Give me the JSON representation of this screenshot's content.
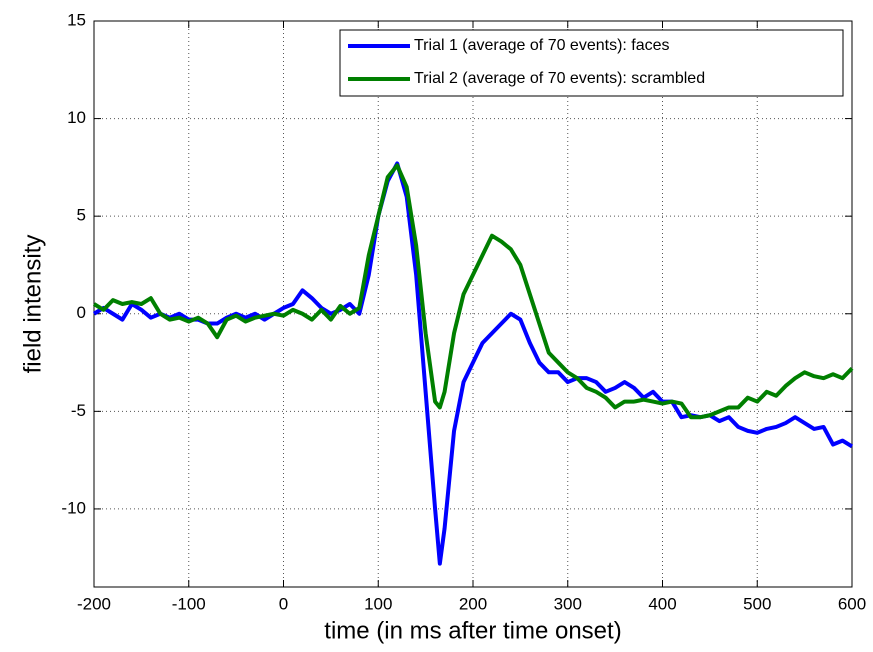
{
  "chart_data": {
    "type": "line",
    "xlabel": "time (in ms after time onset)",
    "ylabel": "field intensity",
    "x": [
      -200,
      -190,
      -180,
      -170,
      -160,
      -150,
      -140,
      -130,
      -120,
      -110,
      -100,
      -90,
      -80,
      -70,
      -60,
      -50,
      -40,
      -30,
      -20,
      -10,
      0,
      10,
      20,
      30,
      40,
      50,
      60,
      70,
      80,
      90,
      100,
      110,
      120,
      130,
      140,
      150,
      160,
      165,
      170,
      180,
      190,
      200,
      210,
      220,
      230,
      240,
      250,
      260,
      270,
      280,
      290,
      300,
      310,
      320,
      330,
      340,
      350,
      360,
      370,
      380,
      390,
      400,
      410,
      420,
      430,
      440,
      450,
      460,
      470,
      480,
      490,
      500,
      510,
      520,
      530,
      540,
      550,
      560,
      570,
      580,
      590,
      600
    ],
    "series": [
      {
        "name": "Trial 1 (average of 70 events): faces",
        "color": "#0000ff",
        "values": [
          0,
          0.3,
          0,
          -0.3,
          0.5,
          0.2,
          -0.2,
          0,
          -0.2,
          0,
          -0.3,
          -0.3,
          -0.5,
          -0.5,
          -0.2,
          0,
          -0.2,
          0,
          -0.3,
          0,
          0.3,
          0.5,
          1.2,
          0.8,
          0.3,
          0,
          0.2,
          0.5,
          0,
          2,
          5,
          6.8,
          7.7,
          6,
          2,
          -4,
          -10,
          -12.8,
          -11,
          -6,
          -3.5,
          -2.5,
          -1.5,
          -1,
          -0.5,
          0,
          -0.3,
          -1.5,
          -2.5,
          -3,
          -3,
          -3.5,
          -3.3,
          -3.3,
          -3.5,
          -4,
          -3.8,
          -3.5,
          -3.8,
          -4.3,
          -4,
          -4.5,
          -4.5,
          -5.3,
          -5.2,
          -5.3,
          -5.2,
          -5.5,
          -5.3,
          -5.8,
          -6,
          -6.1,
          -5.9,
          -5.8,
          -5.6,
          -5.3,
          -5.6,
          -5.9,
          -5.8,
          -6.7,
          -6.5,
          -6.8
        ]
      },
      {
        "name": "Trial 2 (average of 70 events): scrambled",
        "color": "#007f00",
        "values": [
          0.5,
          0.2,
          0.7,
          0.5,
          0.6,
          0.5,
          0.8,
          0,
          -0.3,
          -0.2,
          -0.4,
          -0.2,
          -0.5,
          -1.2,
          -0.3,
          -0.1,
          -0.4,
          -0.2,
          -0.1,
          0,
          -0.1,
          0.2,
          0,
          -0.3,
          0.2,
          -0.3,
          0.4,
          0,
          0.3,
          3,
          5,
          7,
          7.6,
          6.5,
          3.5,
          -1,
          -4.5,
          -4.8,
          -4,
          -1,
          1,
          2,
          3,
          4,
          3.7,
          3.3,
          2.5,
          1,
          -0.5,
          -2,
          -2.5,
          -3,
          -3.3,
          -3.8,
          -4,
          -4.3,
          -4.8,
          -4.5,
          -4.5,
          -4.4,
          -4.5,
          -4.6,
          -4.5,
          -4.6,
          -5.3,
          -5.3,
          -5.2,
          -5,
          -4.8,
          -4.8,
          -4.3,
          -4.5,
          -4,
          -4.2,
          -3.7,
          -3.3,
          -3,
          -3.2,
          -3.3,
          -3.1,
          -3.3,
          -2.8
        ]
      }
    ],
    "xlim": [
      -200,
      600
    ],
    "xticks": [
      -200,
      -100,
      0,
      100,
      200,
      300,
      400,
      500,
      600
    ],
    "ylim": [
      -14,
      15
    ],
    "yticks": [
      -10,
      -5,
      0,
      5,
      10,
      15
    ],
    "grid": true,
    "legend": "upper right"
  }
}
